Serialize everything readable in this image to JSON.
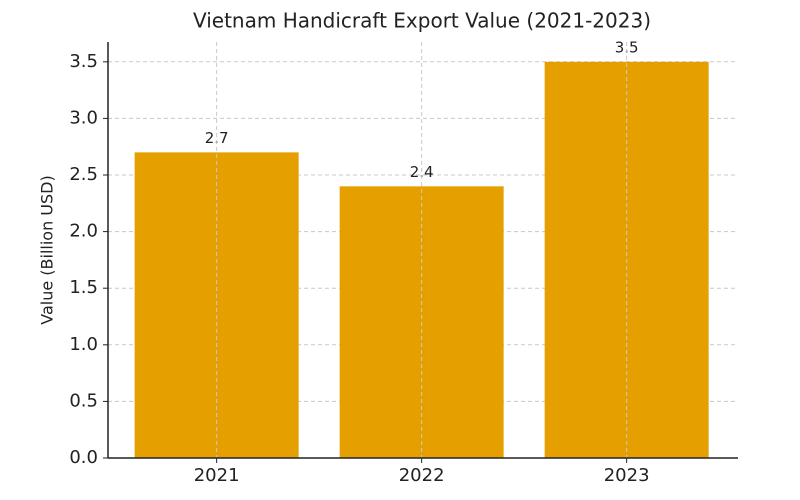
{
  "chart_data": {
    "type": "bar",
    "title": "Vietnam Handicraft Export Value (2021-2023)",
    "y_label": "Value (Billion USD)",
    "categories": [
      "2021",
      "2022",
      "2023"
    ],
    "values": [
      2.7,
      2.4,
      3.5
    ],
    "color": "#e5a000",
    "ylim": [
      0,
      3.675
    ],
    "yticks": [
      {
        "value": 0,
        "label": "0.0"
      },
      0.5,
      {
        "value": 1,
        "label": "1.0"
      },
      1.5,
      {
        "value": 2,
        "label": "2.0"
      },
      2.5,
      {
        "value": 3,
        "label": "3.0"
      },
      3.5
    ],
    "grid": true
  }
}
